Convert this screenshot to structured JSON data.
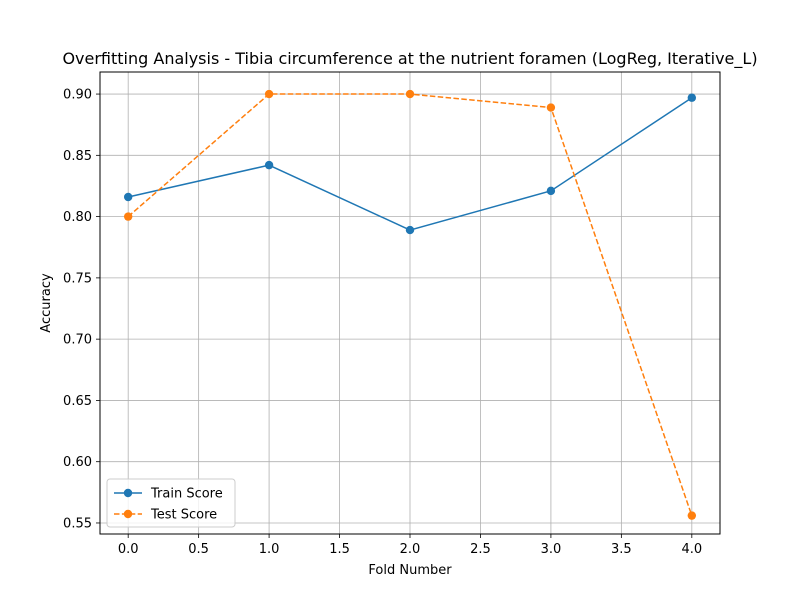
{
  "chart_data": {
    "type": "line",
    "title": "Overfitting Analysis - Tibia circumference at the nutrient foramen (LogReg, Iterative_L)",
    "xlabel": "Fold Number",
    "ylabel": "Accuracy",
    "xlim": [
      -0.2,
      4.2
    ],
    "ylim": [
      0.541,
      0.918
    ],
    "x_ticks": [
      0.0,
      0.5,
      1.0,
      1.5,
      2.0,
      2.5,
      3.0,
      3.5,
      4.0
    ],
    "x_tick_labels": [
      "0.0",
      "0.5",
      "1.0",
      "1.5",
      "2.0",
      "2.5",
      "3.0",
      "3.5",
      "4.0"
    ],
    "y_ticks": [
      0.55,
      0.6,
      0.65,
      0.7,
      0.75,
      0.8,
      0.85,
      0.9
    ],
    "y_tick_labels": [
      "0.55",
      "0.60",
      "0.65",
      "0.70",
      "0.75",
      "0.80",
      "0.85",
      "0.90"
    ],
    "grid": true,
    "legend_position": "lower-left",
    "x": [
      0,
      1,
      2,
      3,
      4
    ],
    "series": [
      {
        "name": "Train Score",
        "values": [
          0.816,
          0.842,
          0.789,
          0.821,
          0.897
        ],
        "color": "#1f77b4",
        "line_style": "solid",
        "marker": "circle"
      },
      {
        "name": "Test Score",
        "values": [
          0.8,
          0.9,
          0.9,
          0.889,
          0.556
        ],
        "color": "#ff7f0e",
        "line_style": "dashed",
        "marker": "circle"
      }
    ]
  }
}
